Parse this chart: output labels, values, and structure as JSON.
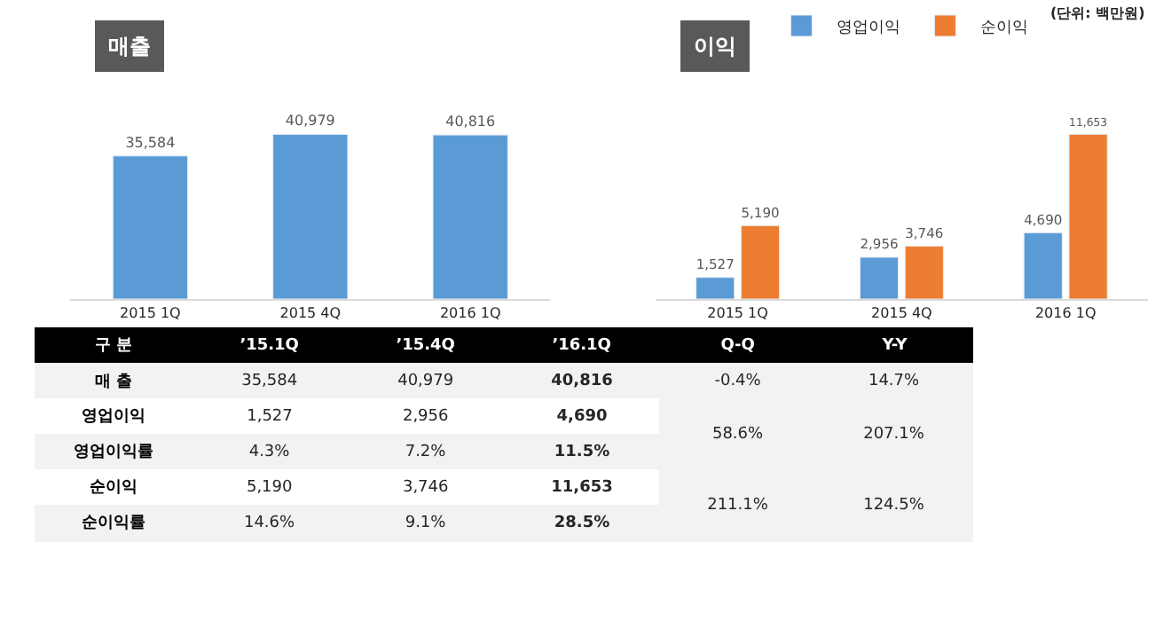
{
  "chart_data": [
    {
      "type": "bar",
      "title": "매출",
      "categories": [
        "2015 1Q",
        "2015 4Q",
        "2016 1Q"
      ],
      "values": [
        35584,
        40979,
        40816
      ],
      "value_labels": [
        "35,584",
        "40,979",
        "40,816"
      ],
      "color": "#5b9bd5",
      "legend": false
    },
    {
      "type": "bar",
      "title": "이익",
      "categories": [
        "2015 1Q",
        "2015 4Q",
        "2016 1Q"
      ],
      "series": [
        {
          "name": "영업이익",
          "color": "#5b9bd5",
          "values": [
            1527,
            2956,
            4690
          ],
          "value_labels": [
            "1,527",
            "2,956",
            "4,690"
          ]
        },
        {
          "name": "순이익",
          "color": "#ed7d31",
          "values": [
            5190,
            3746,
            11653
          ],
          "value_labels": [
            "5,190",
            "3,746",
            "11,653"
          ]
        }
      ],
      "legend": "top",
      "annotations": [
        "(단위: 백만원)"
      ]
    },
    {
      "type": "other",
      "categories": [
        "구 분",
        "’15.1Q",
        "’15.4Q",
        "’16.1Q",
        "Q-Q",
        "Y-Y"
      ],
      "y_categories": [
        "매 출",
        "영업이익",
        "영업이익률",
        "순이익",
        "순이익률"
      ],
      "cell_labels": [
        [
          "35,584",
          "40,979",
          "40,816",
          "-0.4%",
          "14.7%"
        ],
        [
          "1,527",
          "2,956",
          "4,690",
          "58.6%",
          "207.1%"
        ],
        [
          "4.3%",
          "7.2%",
          "11.5%",
          null,
          null
        ],
        [
          "5,190",
          "3,746",
          "11,653",
          "211.1%",
          "124.5%"
        ],
        [
          "14.6%",
          "9.1%",
          "28.5%",
          null,
          null
        ]
      ]
    }
  ]
}
